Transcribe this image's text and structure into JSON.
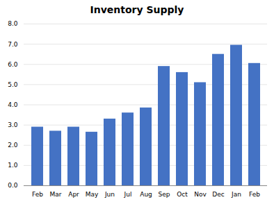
{
  "chart_data": {
    "type": "bar",
    "title": "Inventory Supply",
    "categories": [
      "Feb",
      "Mar",
      "Apr",
      "May",
      "Jun",
      "Jul",
      "Aug",
      "Sep",
      "Oct",
      "Nov",
      "Dec",
      "Jan",
      "Feb"
    ],
    "values": [
      2.9,
      2.7,
      2.9,
      2.65,
      3.3,
      3.6,
      3.85,
      5.9,
      5.6,
      5.1,
      6.5,
      6.95,
      6.05
    ],
    "color": "#4472C4",
    "ylim": [
      0,
      8.0
    ],
    "yticks": [
      {
        "value": 0.0,
        "label": "0.0"
      },
      {
        "value": 1.0,
        "label": "1.0"
      },
      {
        "value": 2.0,
        "label": "2.0"
      },
      {
        "value": 3.0,
        "label": "3.0"
      },
      {
        "value": 4.0,
        "label": "4.0"
      },
      {
        "value": 5.0,
        "label": "5.0"
      },
      {
        "value": 6.0,
        "label": "6.0"
      },
      {
        "value": 7.0,
        "label": "7.0"
      },
      {
        "value": 8.0,
        "label": "8.0"
      }
    ],
    "grid": true
  }
}
